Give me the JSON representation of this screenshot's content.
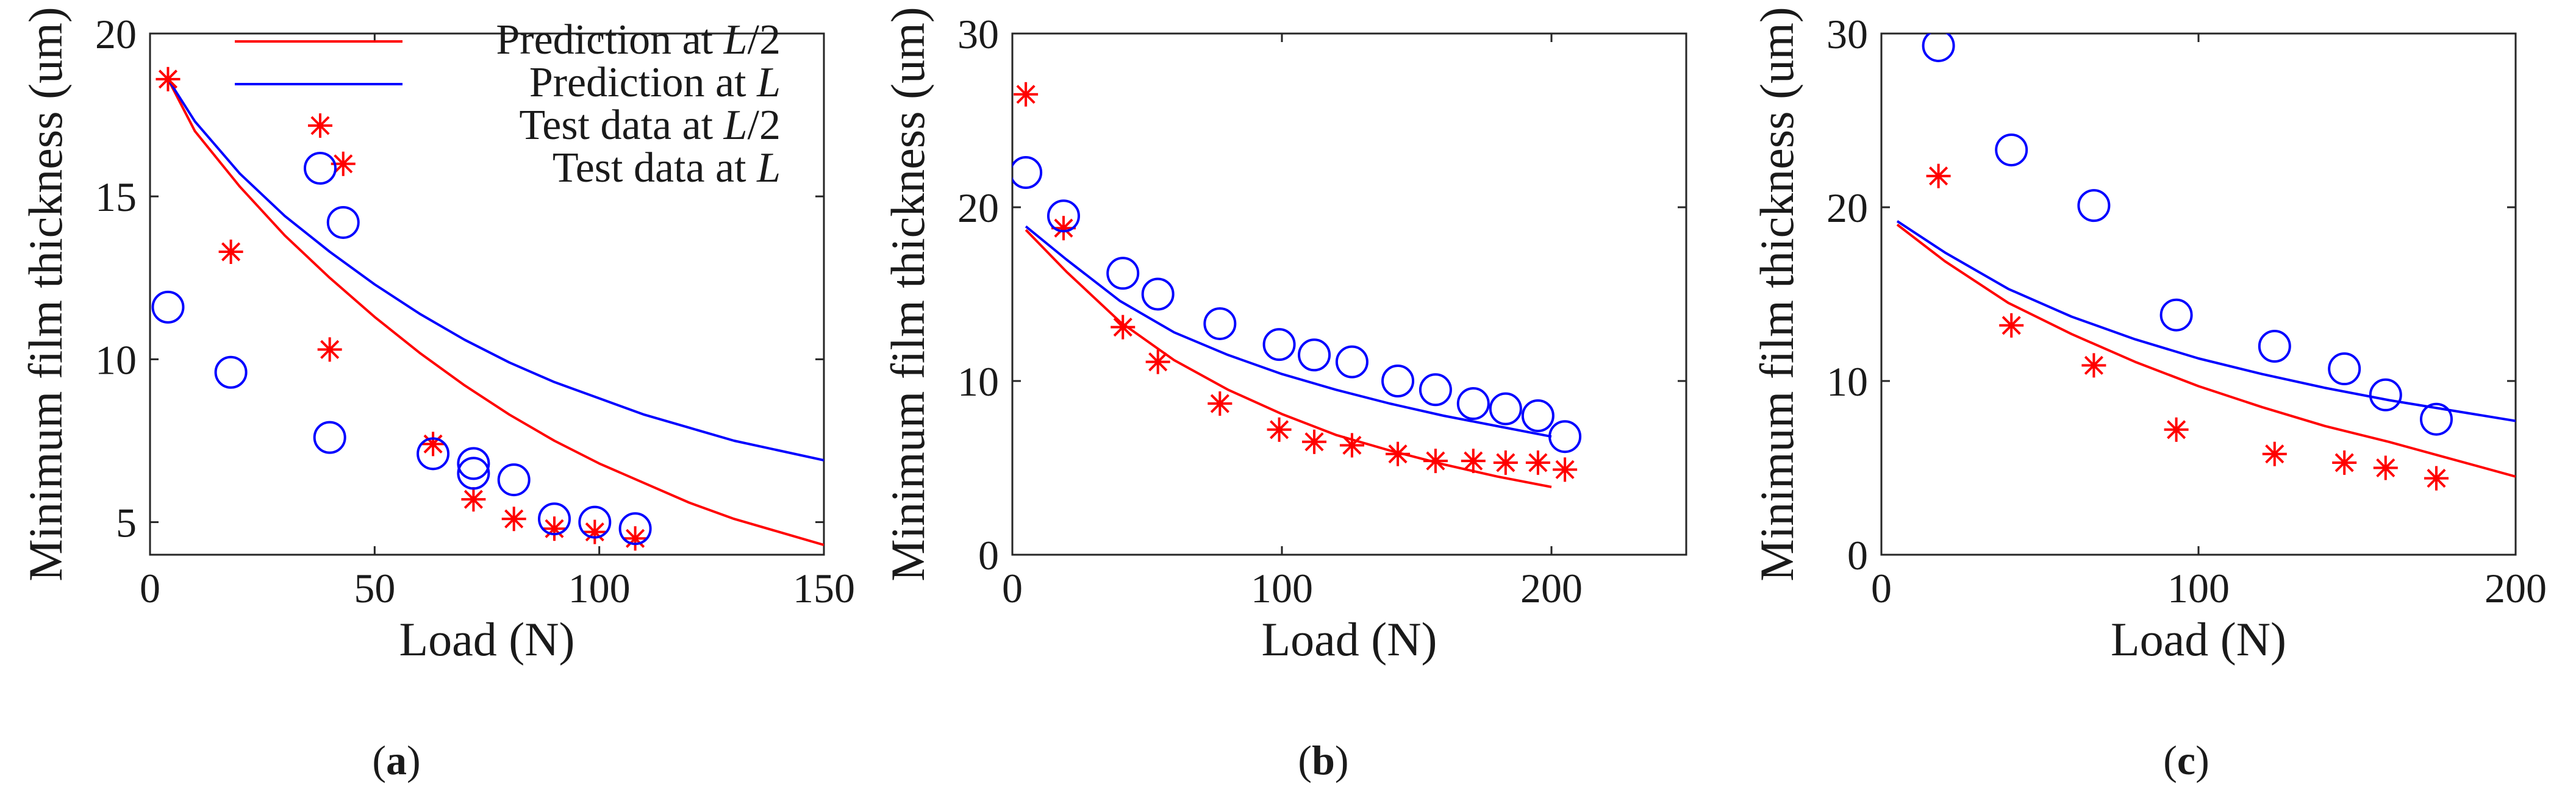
{
  "chart_data": [
    {
      "type": "line",
      "title": "",
      "subfigure": "a",
      "xlabel": "Load (N)",
      "ylabel": "Minimum film thickness (um)",
      "xlim": [
        0,
        150
      ],
      "ylim": [
        4,
        20
      ],
      "xticks": [
        0,
        50,
        100,
        150
      ],
      "yticks": [
        5,
        10,
        15,
        20
      ],
      "legend": {
        "position": "top-right",
        "entries": [
          {
            "label": "Prediction at L/2",
            "prefix": "Prediction at ",
            "var": "L",
            "suffix": "/2",
            "series": 0
          },
          {
            "label": "Prediction at L",
            "prefix": "Prediction at ",
            "var": "L",
            "suffix": "",
            "series": 1
          },
          {
            "label": "Test data at L/2",
            "prefix": "Test data at ",
            "var": "L",
            "suffix": "/2",
            "series": 2
          },
          {
            "label": "Test data at L",
            "prefix": "Test data at ",
            "var": "L",
            "suffix": "",
            "series": 3
          }
        ]
      },
      "series": [
        {
          "name": "Prediction at L/2",
          "kind": "line",
          "color": "#ff0000",
          "x": [
            4,
            10,
            20,
            30,
            40,
            50,
            60,
            70,
            80,
            90,
            100,
            110,
            120,
            130,
            140,
            150
          ],
          "y": [
            18.6,
            17.0,
            15.3,
            13.8,
            12.5,
            11.3,
            10.2,
            9.2,
            8.3,
            7.5,
            6.8,
            6.2,
            5.6,
            5.1,
            4.7,
            4.3
          ]
        },
        {
          "name": "Prediction at L",
          "kind": "line",
          "color": "#0000ff",
          "x": [
            4,
            10,
            20,
            30,
            40,
            50,
            60,
            70,
            80,
            90,
            100,
            110,
            120,
            130,
            140,
            150
          ],
          "y": [
            18.6,
            17.3,
            15.7,
            14.4,
            13.3,
            12.3,
            11.4,
            10.6,
            9.9,
            9.3,
            8.8,
            8.3,
            7.9,
            7.5,
            7.2,
            6.9
          ]
        },
        {
          "name": "Test data at L/2",
          "kind": "marker",
          "marker": "asterisk",
          "color": "#ff0000",
          "x": [
            4,
            18,
            40,
            43,
            63,
            72,
            81,
            90,
            99,
            108
          ],
          "y": [
            18.6,
            13.3,
            10.3,
            16.0,
            7.4,
            5.7,
            5.1,
            4.8,
            4.7,
            4.5
          ]
        },
        {
          "name": "Test data at L",
          "kind": "marker",
          "marker": "circle",
          "color": "#0000ff",
          "x": [
            4,
            18,
            40,
            43,
            63,
            72,
            72,
            81,
            90,
            99,
            108
          ],
          "y": [
            11.6,
            9.6,
            7.6,
            14.2,
            7.1,
            6.8,
            6.5,
            6.3,
            5.1,
            5.0,
            4.8
          ]
        }
      ],
      "caption_label": "a"
    },
    {
      "type": "line",
      "title": "",
      "subfigure": "b",
      "xlabel": "Load (N)",
      "ylabel": "Minimum film thickness (um)",
      "xlim": [
        0,
        250
      ],
      "ylim": [
        0,
        30
      ],
      "xticks": [
        0,
        100,
        200
      ],
      "yticks": [
        0,
        10,
        20,
        30
      ],
      "series": [
        {
          "name": "Prediction at L/2",
          "kind": "line",
          "color": "#ff0000",
          "x": [
            5,
            20,
            40,
            60,
            80,
            100,
            120,
            140,
            160,
            180,
            200
          ],
          "y": [
            18.7,
            16.3,
            13.4,
            11.2,
            9.5,
            8.1,
            6.9,
            6.0,
            5.2,
            4.5,
            3.9
          ]
        },
        {
          "name": "Prediction at L",
          "kind": "line",
          "color": "#0000ff",
          "x": [
            5,
            20,
            40,
            60,
            80,
            100,
            120,
            140,
            160,
            180,
            200
          ],
          "y": [
            18.9,
            17.0,
            14.6,
            12.8,
            11.5,
            10.4,
            9.5,
            8.7,
            8.0,
            7.4,
            6.8
          ]
        },
        {
          "name": "Test data at L/2",
          "kind": "marker",
          "marker": "asterisk",
          "color": "#ff0000",
          "x": [
            5,
            19,
            41,
            54,
            77,
            99,
            112,
            126,
            143,
            157,
            171,
            183,
            195,
            205
          ],
          "y": [
            26.5,
            18.8,
            13.1,
            11.1,
            8.7,
            7.2,
            6.5,
            6.3,
            5.8,
            5.4,
            5.4,
            5.3,
            5.3,
            4.9
          ]
        },
        {
          "name": "Test data at L",
          "kind": "marker",
          "marker": "circle",
          "color": "#0000ff",
          "x": [
            5,
            19,
            41,
            54,
            77,
            99,
            112,
            126,
            143,
            157,
            171,
            183,
            195,
            205
          ],
          "y": [
            22.0,
            19.5,
            16.2,
            15.0,
            13.3,
            12.1,
            11.5,
            11.1,
            10.0,
            9.5,
            8.7,
            8.4,
            8.0,
            6.8
          ]
        }
      ],
      "caption_label": "b"
    },
    {
      "type": "line",
      "title": "",
      "subfigure": "c",
      "xlabel": "Load (N)",
      "ylabel": "Minimum film thickness (um)",
      "xlim": [
        0,
        200
      ],
      "ylim": [
        0,
        30
      ],
      "xticks": [
        0,
        100,
        200
      ],
      "yticks": [
        0,
        10,
        20,
        30
      ],
      "series": [
        {
          "name": "Prediction at L/2",
          "kind": "line",
          "color": "#ff0000",
          "x": [
            5,
            20,
            40,
            60,
            80,
            100,
            120,
            140,
            160,
            180,
            200
          ],
          "y": [
            19.0,
            16.9,
            14.5,
            12.7,
            11.1,
            9.7,
            8.5,
            7.4,
            6.5,
            5.5,
            4.5
          ]
        },
        {
          "name": "Prediction at L",
          "kind": "line",
          "color": "#0000ff",
          "x": [
            5,
            20,
            40,
            60,
            80,
            100,
            120,
            140,
            160,
            180,
            200
          ],
          "y": [
            19.2,
            17.4,
            15.3,
            13.7,
            12.4,
            11.3,
            10.4,
            9.6,
            8.9,
            8.3,
            7.7
          ]
        },
        {
          "name": "Test data at L/2",
          "kind": "marker",
          "marker": "asterisk",
          "color": "#ff0000",
          "x": [
            18,
            41,
            67,
            93,
            124,
            146,
            159,
            175
          ],
          "y": [
            21.8,
            13.2,
            10.9,
            7.2,
            5.8,
            5.3,
            5.0,
            4.4
          ]
        },
        {
          "name": "Test data at L",
          "kind": "marker",
          "marker": "circle",
          "color": "#0000ff",
          "x": [
            18,
            41,
            67,
            93,
            124,
            146,
            159,
            175
          ],
          "y": [
            29.3,
            23.3,
            20.1,
            13.8,
            12.0,
            10.7,
            9.2,
            7.8
          ]
        }
      ],
      "caption_label": "c"
    }
  ]
}
